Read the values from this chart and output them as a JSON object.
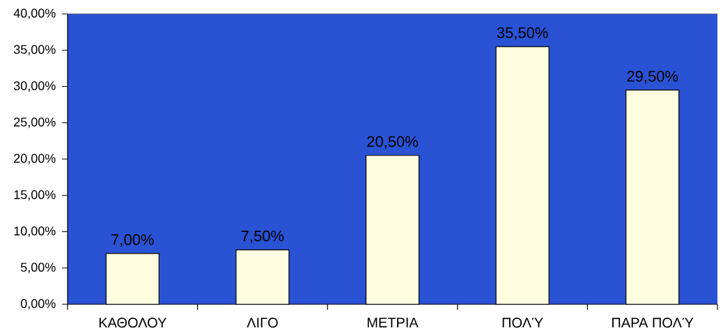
{
  "chart_data": {
    "type": "bar",
    "categories": [
      "ΚΑΘΟΛΟΥ",
      "ΛΙΓΟ",
      "ΜΕΤΡΙΑ",
      "ΠΟΛΎ",
      "ΠΑΡΑ ΠΟΛΎ"
    ],
    "values": [
      7,
      7.5,
      20.5,
      35.5,
      29.5
    ],
    "color": "#fffde0",
    "value_labels": [
      "7,00%",
      "7,50%",
      "20,50%",
      "35,50%",
      "29,50%"
    ],
    "ylim": [
      0,
      40
    ],
    "yticks": [
      {
        "value": 0,
        "label": "0,00%"
      },
      {
        "value": 5,
        "label": "5,00%"
      },
      {
        "value": 10,
        "label": "10,00%"
      },
      {
        "value": 15,
        "label": "15,00%"
      },
      {
        "value": 20,
        "label": "20,00%"
      },
      {
        "value": 25,
        "label": "25,00%"
      },
      {
        "value": 30,
        "label": "30,00%"
      },
      {
        "value": 35,
        "label": "35,00%"
      },
      {
        "value": 40,
        "label": "40,00%"
      }
    ]
  }
}
